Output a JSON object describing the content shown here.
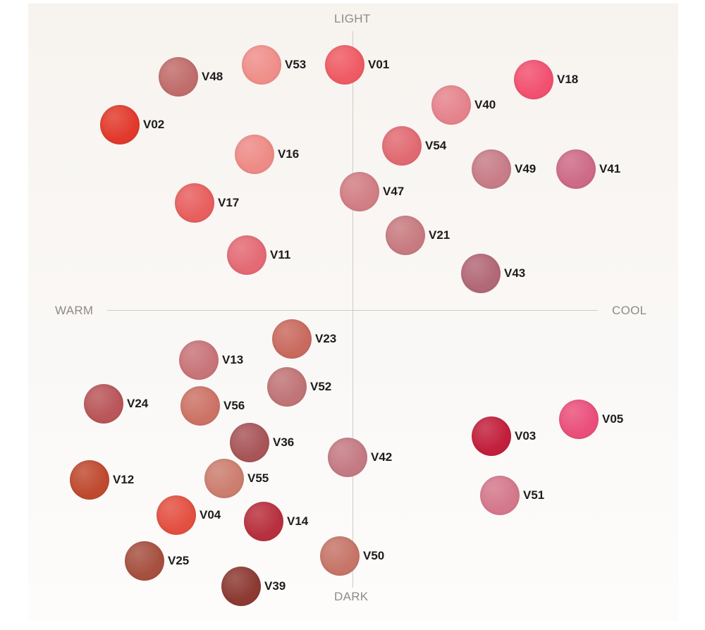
{
  "axes": {
    "top": "LIGHT",
    "bottom": "DARK",
    "left": "WARM",
    "right": "COOL"
  },
  "shades": [
    {
      "code": "V48",
      "color": "#c06d6b"
    },
    {
      "code": "V53",
      "color": "#ef8f8a"
    },
    {
      "code": "V01",
      "color": "#ef5b64"
    },
    {
      "code": "V18",
      "color": "#f2506f"
    },
    {
      "code": "V40",
      "color": "#e5838c"
    },
    {
      "code": "V02",
      "color": "#e13a2c"
    },
    {
      "code": "V16",
      "color": "#ee8b86"
    },
    {
      "code": "V54",
      "color": "#e16a72"
    },
    {
      "code": "V49",
      "color": "#c77c87"
    },
    {
      "code": "V41",
      "color": "#cd6a88"
    },
    {
      "code": "V47",
      "color": "#d17e84"
    },
    {
      "code": "V17",
      "color": "#e75f5e"
    },
    {
      "code": "V21",
      "color": "#c77b80"
    },
    {
      "code": "V11",
      "color": "#e46a74"
    },
    {
      "code": "V43",
      "color": "#b26876"
    },
    {
      "code": "V23",
      "color": "#c96a5f"
    },
    {
      "code": "V13",
      "color": "#c87479"
    },
    {
      "code": "V52",
      "color": "#c07476"
    },
    {
      "code": "V24",
      "color": "#b95659"
    },
    {
      "code": "V56",
      "color": "#cc7366"
    },
    {
      "code": "V05",
      "color": "#ea4f7a"
    },
    {
      "code": "V03",
      "color": "#c21f3c"
    },
    {
      "code": "V36",
      "color": "#a85558"
    },
    {
      "code": "V42",
      "color": "#c47a83"
    },
    {
      "code": "V12",
      "color": "#bf4a2f"
    },
    {
      "code": "V55",
      "color": "#cc7e6f"
    },
    {
      "code": "V51",
      "color": "#d4788c"
    },
    {
      "code": "V04",
      "color": "#e35041"
    },
    {
      "code": "V14",
      "color": "#b8303e"
    },
    {
      "code": "V50",
      "color": "#c67568"
    },
    {
      "code": "V25",
      "color": "#a6503f"
    },
    {
      "code": "V39",
      "color": "#8c3a32"
    }
  ]
}
